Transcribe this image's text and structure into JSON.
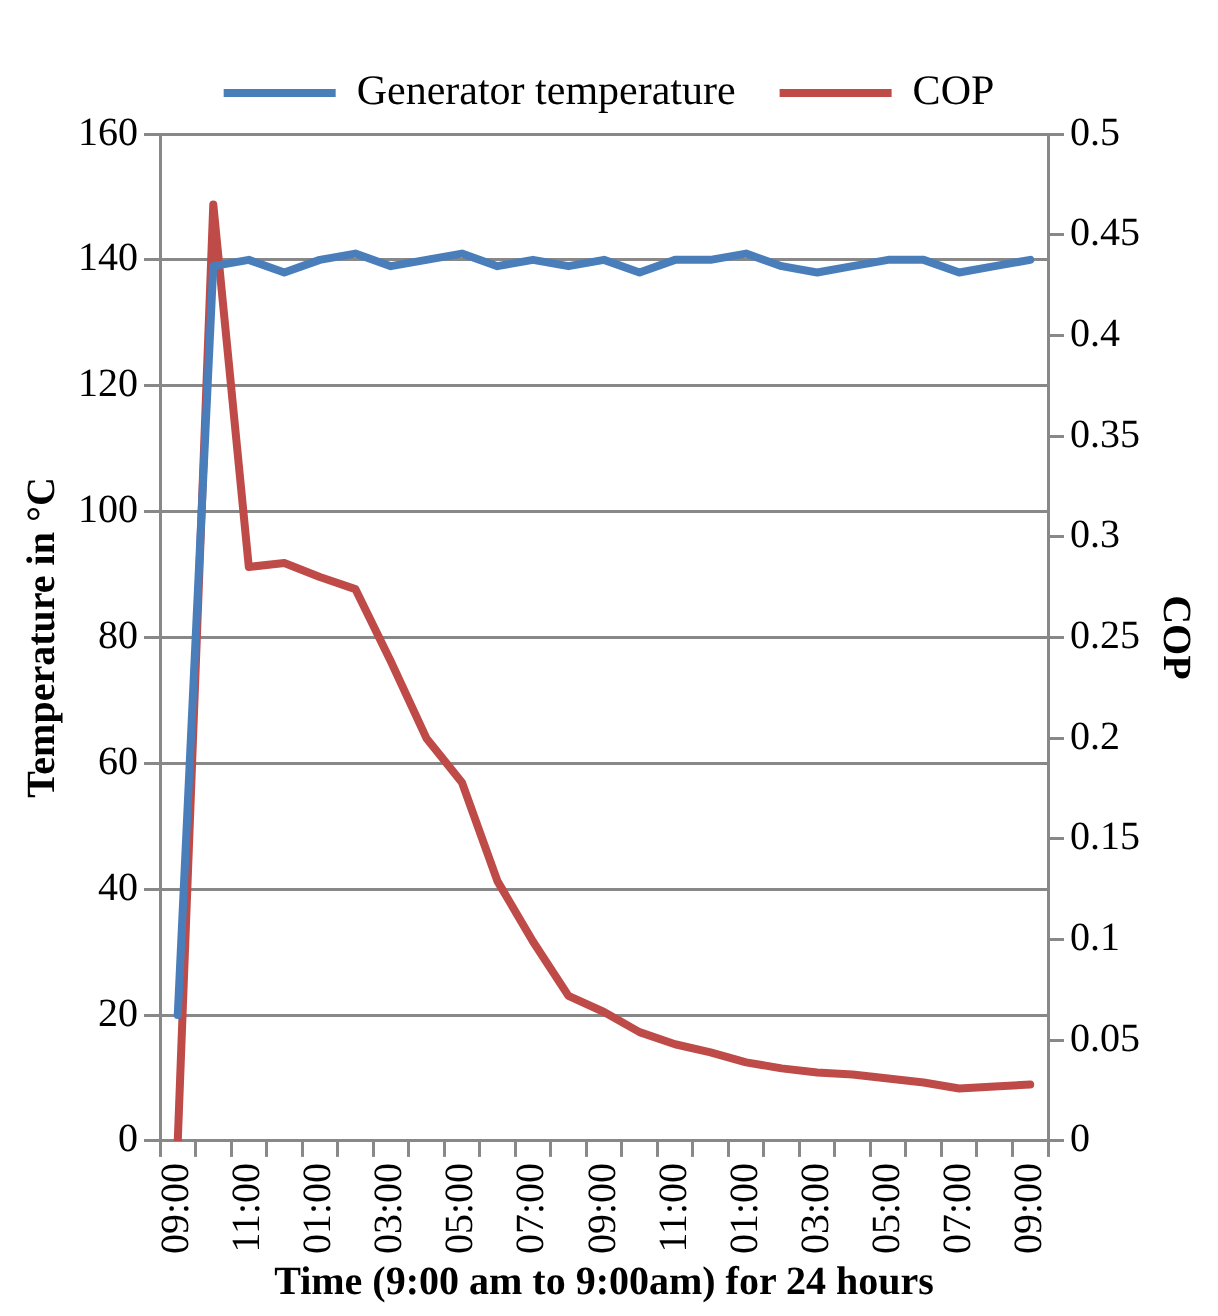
{
  "chart_data": {
    "type": "line",
    "xlabel": "Time (9:00 am to 9:00am) for 24 hours",
    "ylabel": "Temperature in °C",
    "y2label": "COP",
    "categories": [
      "09:00",
      null,
      "11:00",
      null,
      "01:00",
      null,
      "03:00",
      null,
      "05:00",
      null,
      "07:00",
      null,
      "09:00",
      null,
      "11:00",
      null,
      "01:00",
      null,
      "03:00",
      null,
      "05:00",
      null,
      "07:00",
      null,
      "09:00"
    ],
    "series": [
      {
        "name": "Generator temperature",
        "color": "#4a7ebb",
        "values": [
          20,
          139,
          140,
          138,
          140,
          141,
          139,
          140,
          141,
          139,
          140,
          139,
          140,
          138,
          140,
          140,
          141,
          139,
          138,
          139,
          140,
          140,
          138,
          139,
          140
        ]
      },
      {
        "name": "COP",
        "color": "#be4b48",
        "axis": "y2",
        "values": [
          0,
          0.465,
          0.285,
          0.287,
          0.28,
          0.274,
          0.238,
          0.2,
          0.178,
          0.129,
          0.099,
          0.072,
          0.064,
          0.054,
          0.048,
          0.044,
          0.039,
          0.036,
          0.034,
          0.033,
          0.031,
          0.029,
          0.026,
          0.027,
          0.028
        ]
      }
    ],
    "ylim": [
      0,
      160
    ],
    "yticks": [
      0,
      20,
      40,
      60,
      80,
      100,
      120,
      140,
      160
    ],
    "y2lim": [
      0,
      0.5
    ],
    "y2ticks": [
      0,
      0.05,
      0.1,
      0.15,
      0.2,
      0.25,
      0.3,
      0.35,
      0.4,
      0.45,
      0.5
    ],
    "grid": "y",
    "legend": "top",
    "marker": "none",
    "line_style": "solid"
  }
}
